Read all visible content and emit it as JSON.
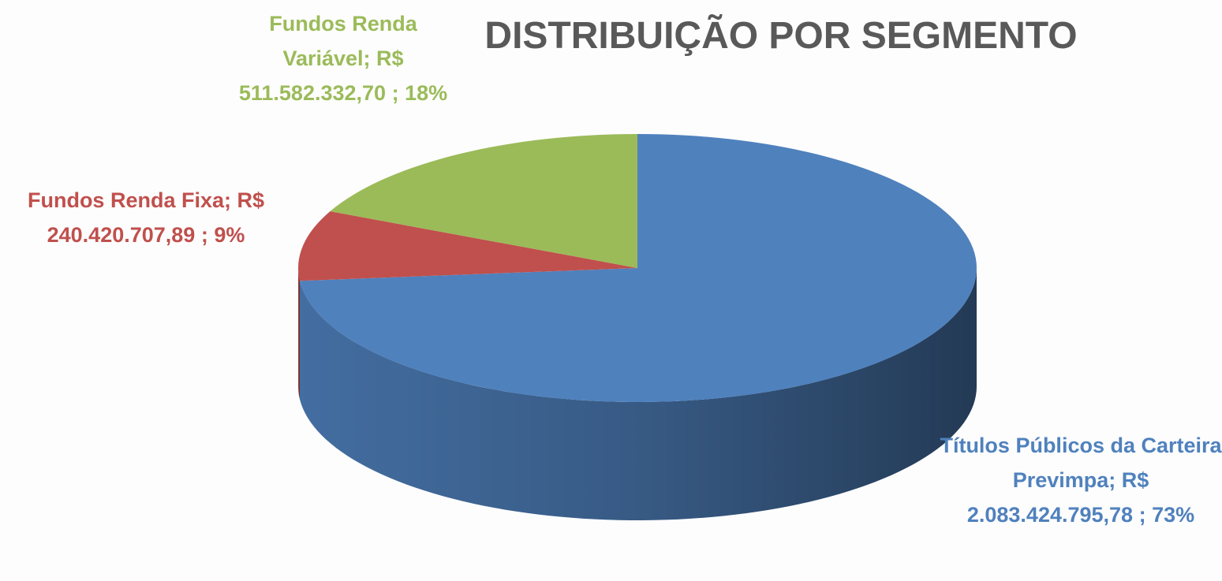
{
  "chart_data": {
    "type": "pie",
    "title": "DISTRIBUIÇÃO POR SEGMENTO",
    "categories": [
      "Títulos Públicos da Carteira Previmpa",
      "Fundos Renda Fixa",
      "Fundos Renda Variável"
    ],
    "values": [
      2083424795.78,
      240420707.89,
      511582332.7
    ],
    "value_labels": [
      "R$ 2.083.424.795,78",
      "R$ 240.420.707,89",
      "R$ 511.582.332,70"
    ],
    "percents": [
      73,
      9,
      18
    ],
    "percent_labels": [
      "73%",
      "9%",
      "18%"
    ],
    "label_separator": ";",
    "colors": [
      "#4f81bd",
      "#c0504d",
      "#9bbb59"
    ]
  }
}
